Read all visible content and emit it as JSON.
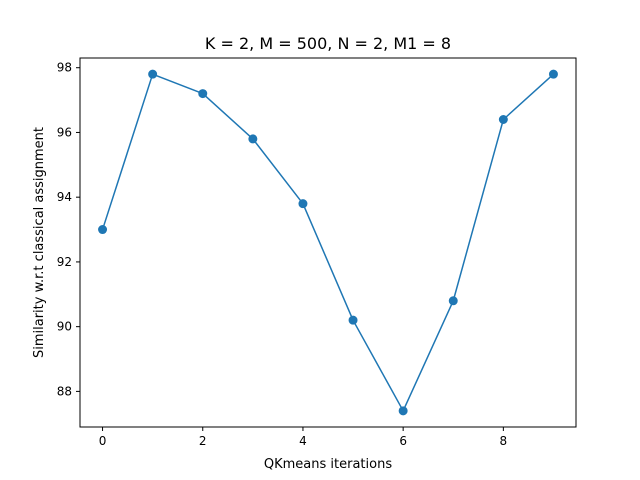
{
  "chart_data": {
    "type": "line",
    "title": "K = 2, M = 500, N = 2, M1 = 8",
    "xlabel": "QKmeans iterations",
    "ylabel": "Similarity w.r.t classical assignment",
    "x": [
      0,
      1,
      2,
      3,
      4,
      5,
      6,
      7,
      8,
      9
    ],
    "series": [
      {
        "values": [
          93.0,
          97.8,
          97.2,
          95.8,
          93.8,
          90.2,
          87.4,
          90.8,
          96.4,
          97.8
        ],
        "color": "#1f77b4",
        "marker": "circle"
      }
    ],
    "xlim": [
      -0.45,
      9.45
    ],
    "ylim": [
      86.9,
      98.3
    ],
    "xticks": [
      0,
      2,
      4,
      6,
      8
    ],
    "yticks": [
      88,
      90,
      92,
      94,
      96,
      98
    ],
    "grid": false,
    "legend": false
  }
}
